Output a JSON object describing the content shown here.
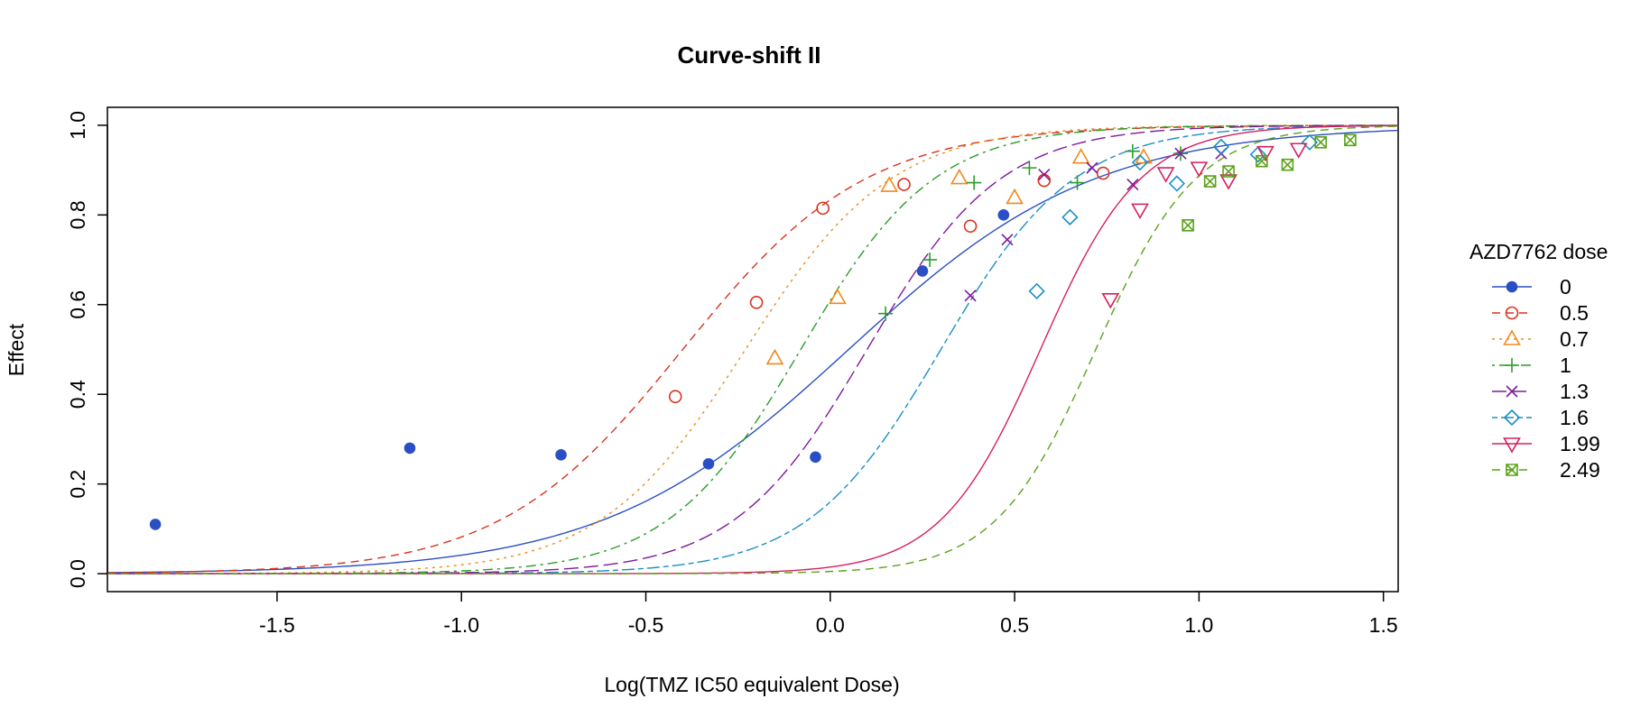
{
  "chart_data": {
    "type": "line",
    "title": "Curve-shift II",
    "xlabel": "Log(TMZ IC50 equivalent Dose)",
    "ylabel": "Effect",
    "xlim": [
      -1.96,
      1.54
    ],
    "ylim": [
      -0.04,
      1.04
    ],
    "x_ticks": [
      -1.5,
      -1.0,
      -0.5,
      0.0,
      0.5,
      1.0,
      1.5
    ],
    "x_tick_labels": [
      "-1.5",
      "-1.0",
      "-0.5",
      "0.0",
      "0.5",
      "1.0",
      "1.5"
    ],
    "y_ticks": [
      0.0,
      0.2,
      0.4,
      0.6,
      0.8,
      1.0
    ],
    "y_tick_labels": [
      "0.0",
      "0.2",
      "0.4",
      "0.6",
      "0.8",
      "1.0"
    ],
    "grid": false,
    "legend": {
      "title": "AZD7762 dose",
      "placement": "right"
    },
    "series": [
      {
        "name": "0",
        "color": "#2a4fc4",
        "marker": "filled-circle",
        "line": "solid",
        "fit": {
          "x50": 0.05,
          "slope": 1.3
        },
        "points": [
          [
            -1.83,
            0.11
          ],
          [
            -1.14,
            0.28
          ],
          [
            -0.73,
            0.265
          ],
          [
            -0.33,
            0.245
          ],
          [
            -0.04,
            0.26
          ],
          [
            0.25,
            0.675
          ],
          [
            0.47,
            0.8
          ]
        ]
      },
      {
        "name": "0.5",
        "color": "#d9321f",
        "marker": "open-circle",
        "line": "dashed",
        "fit": {
          "x50": -0.4,
          "slope": 1.75
        },
        "points": [
          [
            -0.42,
            0.395
          ],
          [
            -0.2,
            0.605
          ],
          [
            -0.02,
            0.815
          ],
          [
            0.2,
            0.868
          ],
          [
            0.38,
            0.775
          ],
          [
            0.58,
            0.877
          ],
          [
            0.74,
            0.893
          ]
        ]
      },
      {
        "name": "0.7",
        "color": "#f08a1c",
        "marker": "triangle",
        "line": "dotted",
        "fit": {
          "x50": -0.23,
          "slope": 2.2
        },
        "points": [
          [
            -0.15,
            0.48
          ],
          [
            0.02,
            0.615
          ],
          [
            0.16,
            0.865
          ],
          [
            0.35,
            0.882
          ],
          [
            0.5,
            0.838
          ],
          [
            0.68,
            0.928
          ],
          [
            0.85,
            0.928
          ]
        ]
      },
      {
        "name": "1",
        "color": "#2a9c2a",
        "marker": "plus",
        "line": "dotdash",
        "fit": {
          "x50": -0.08,
          "slope": 2.4
        },
        "points": [
          [
            0.15,
            0.58
          ],
          [
            0.27,
            0.7
          ],
          [
            0.39,
            0.872
          ],
          [
            0.54,
            0.905
          ],
          [
            0.67,
            0.872
          ],
          [
            0.82,
            0.942
          ],
          [
            0.95,
            0.937
          ]
        ]
      },
      {
        "name": "1.3",
        "color": "#7d1a9c",
        "marker": "cross",
        "line": "longdash",
        "fit": {
          "x50": 0.1,
          "slope": 2.4
        },
        "points": [
          [
            0.38,
            0.62
          ],
          [
            0.48,
            0.745
          ],
          [
            0.58,
            0.89
          ],
          [
            0.71,
            0.905
          ],
          [
            0.82,
            0.868
          ],
          [
            0.95,
            0.937
          ],
          [
            1.06,
            0.937
          ]
        ]
      },
      {
        "name": "1.6",
        "color": "#1a8fc4",
        "marker": "diamond",
        "line": "twodash",
        "fit": {
          "x50": 0.3,
          "slope": 2.4
        },
        "points": [
          [
            0.56,
            0.63
          ],
          [
            0.65,
            0.795
          ],
          [
            0.84,
            0.917
          ],
          [
            0.94,
            0.87
          ],
          [
            1.06,
            0.952
          ],
          [
            1.16,
            0.935
          ],
          [
            1.3,
            0.962
          ]
        ]
      },
      {
        "name": "1.99",
        "color": "#d61f5f",
        "marker": "inv-triangle",
        "line": "solid",
        "fit": {
          "x50": 0.57,
          "slope": 3.2
        },
        "points": [
          [
            0.76,
            0.612
          ],
          [
            0.84,
            0.812
          ],
          [
            0.91,
            0.893
          ],
          [
            1.0,
            0.905
          ],
          [
            1.08,
            0.877
          ],
          [
            1.18,
            0.94
          ],
          [
            1.27,
            0.947
          ]
        ]
      },
      {
        "name": "2.49",
        "color": "#5aa31a",
        "marker": "boxed-x",
        "line": "dashed",
        "fit": {
          "x50": 0.72,
          "slope": 3.2
        },
        "points": [
          [
            0.97,
            0.777
          ],
          [
            1.03,
            0.875
          ],
          [
            1.08,
            0.897
          ],
          [
            1.17,
            0.92
          ],
          [
            1.24,
            0.912
          ],
          [
            1.33,
            0.962
          ],
          [
            1.41,
            0.967
          ]
        ]
      }
    ]
  }
}
